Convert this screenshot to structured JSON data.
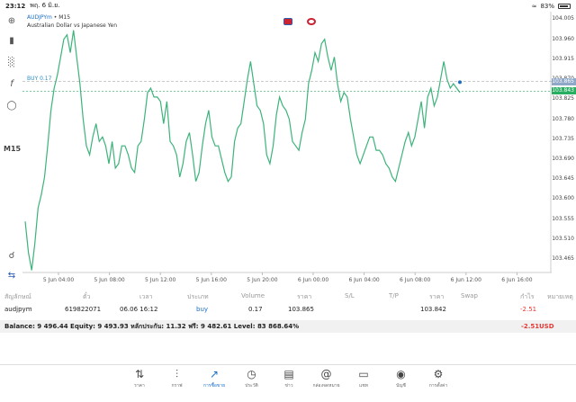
{
  "status": {
    "time": "23:12",
    "date": "พฤ. 6 มิ.ย.",
    "wifi": "wifi-icon",
    "battery": "83%"
  },
  "toolbar": {
    "icons": [
      "crosshair-icon",
      "candlestick-icon",
      "bar-chart-icon",
      "function-icon",
      "shapes-icon"
    ],
    "timeframe": "M15",
    "bottom_icons": [
      "zoom-icon",
      "one-click-trading-icon"
    ]
  },
  "chart": {
    "symbol": "AUDJPYm",
    "timeframe": "M15",
    "description": "Australian Dollar vs Japanese Yen",
    "buy_label": "BUY 0.17",
    "line_color": "#3cb37a",
    "bid_color": "#27ae60",
    "entry_color": "#2a8fc4"
  },
  "chart_data": {
    "type": "line",
    "y_ticks": [
      "104.005",
      "103.960",
      "103.915",
      "103.870",
      "103.825",
      "103.780",
      "103.735",
      "103.690",
      "103.645",
      "103.600",
      "103.555",
      "103.510",
      "103.465"
    ],
    "ylim": [
      103.435,
      104.022
    ],
    "x_ticks": [
      "5 Jun 04:00",
      "5 Jun 08:00",
      "5 Jun 12:00",
      "5 Jun 16:00",
      "5 Jun 20:00",
      "6 Jun 00:00",
      "6 Jun 04:00",
      "6 Jun 08:00",
      "6 Jun 12:00",
      "6 Jun 16:00",
      "6 Jun 20:00"
    ],
    "entry_price": 103.865,
    "current_price": 103.843,
    "values": [
      103.55,
      103.48,
      103.44,
      103.5,
      103.58,
      103.61,
      103.65,
      103.72,
      103.8,
      103.85,
      103.88,
      103.92,
      103.96,
      103.97,
      103.93,
      103.98,
      103.92,
      103.86,
      103.78,
      103.72,
      103.7,
      103.74,
      103.77,
      103.73,
      103.74,
      103.72,
      103.68,
      103.73,
      103.67,
      103.68,
      103.72,
      103.72,
      103.7,
      103.67,
      103.66,
      103.72,
      103.73,
      103.78,
      103.84,
      103.85,
      103.83,
      103.83,
      103.82,
      103.77,
      103.82,
      103.73,
      103.72,
      103.7,
      103.65,
      103.68,
      103.73,
      103.75,
      103.7,
      103.64,
      103.66,
      103.72,
      103.77,
      103.8,
      103.74,
      103.72,
      103.72,
      103.69,
      103.66,
      103.64,
      103.65,
      103.73,
      103.76,
      103.77,
      103.82,
      103.87,
      103.91,
      103.86,
      103.81,
      103.8,
      103.77,
      103.7,
      103.68,
      103.72,
      103.79,
      103.83,
      103.81,
      103.8,
      103.78,
      103.73,
      103.72,
      103.71,
      103.75,
      103.78,
      103.86,
      103.89,
      103.93,
      103.91,
      103.95,
      103.96,
      103.92,
      103.89,
      103.92,
      103.86,
      103.82,
      103.84,
      103.83,
      103.78,
      103.74,
      103.7,
      103.68,
      103.7,
      103.72,
      103.74,
      103.74,
      103.71,
      103.71,
      103.7,
      103.68,
      103.67,
      103.65,
      103.64,
      103.67,
      103.7,
      103.73,
      103.75,
      103.72,
      103.74,
      103.78,
      103.82,
      103.76,
      103.83,
      103.85,
      103.81,
      103.83,
      103.87,
      103.91,
      103.87,
      103.85,
      103.86,
      103.85,
      103.84
    ]
  },
  "positions": {
    "headers": [
      "สัญลักษณ์",
      "ตั๋ว",
      "เวลา",
      "ประเภท",
      "Volume",
      "ราคา",
      "S/L",
      "T/P",
      "ราคา",
      "Swap",
      "กำไร",
      "หมายเหตุ"
    ],
    "row": {
      "symbol": "audjpym",
      "ticket": "619822071",
      "time": "06.06 16:12",
      "type": "buy",
      "volume": "0.17",
      "open_price": "103.865",
      "sl": "",
      "tp": "",
      "current_price": "103.842",
      "swap": "",
      "profit": "-2.51",
      "note": ""
    },
    "summary": "Balance: 9 496.44 Equity: 9 493.93 หลักประกัน: 11.32 ฟรี: 9 482.61 Level: 83 868.64%",
    "summary_profit": "-2.51",
    "currency": "USD"
  },
  "nav": [
    {
      "label": "ราคา",
      "icon": "quotes-icon"
    },
    {
      "label": "กราฟ",
      "icon": "chart-icon"
    },
    {
      "label": "การซื้อขาย",
      "icon": "trade-icon",
      "active": true
    },
    {
      "label": "ประวัติ",
      "icon": "history-icon"
    },
    {
      "label": "ข่าว",
      "icon": "news-icon"
    },
    {
      "label": "กล่องจดหมาย",
      "icon": "mailbox-icon"
    },
    {
      "label": "แชท",
      "icon": "chat-icon"
    },
    {
      "label": "บัญชี",
      "icon": "account-icon"
    },
    {
      "label": "การตั้งค่า",
      "icon": "settings-icon"
    }
  ]
}
